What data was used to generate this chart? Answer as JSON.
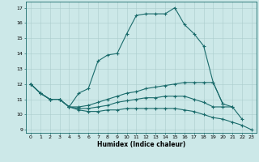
{
  "xlabel": "Humidex (Indice chaleur)",
  "background_color": "#cce8e8",
  "grid_color": "#aacccc",
  "line_color": "#1a6b6b",
  "xlim": [
    -0.5,
    23.5
  ],
  "ylim": [
    8.8,
    17.4
  ],
  "yticks": [
    9,
    10,
    11,
    12,
    13,
    14,
    15,
    16,
    17
  ],
  "xticks": [
    0,
    1,
    2,
    3,
    4,
    5,
    6,
    7,
    8,
    9,
    10,
    11,
    12,
    13,
    14,
    15,
    16,
    17,
    18,
    19,
    20,
    21,
    22,
    23
  ],
  "series": [
    {
      "x": [
        0,
        1,
        2,
        3,
        4,
        5,
        6,
        7,
        8,
        9,
        10,
        11,
        12,
        13,
        14,
        15,
        16,
        17,
        18,
        19,
        20,
        21,
        22,
        23
      ],
      "y": [
        12.0,
        11.4,
        11.0,
        11.0,
        10.5,
        11.4,
        11.7,
        13.5,
        13.9,
        14.0,
        15.3,
        16.5,
        16.6,
        16.6,
        16.6,
        17.0,
        15.9,
        15.3,
        14.5,
        12.1,
        10.7,
        null,
        null,
        null
      ]
    },
    {
      "x": [
        0,
        1,
        2,
        3,
        4,
        5,
        6,
        7,
        8,
        9,
        10,
        11,
        12,
        13,
        14,
        15,
        16,
        17,
        18,
        19,
        20,
        21,
        22,
        23
      ],
      "y": [
        12.0,
        11.4,
        11.0,
        11.0,
        10.5,
        10.5,
        10.6,
        10.8,
        11.0,
        11.2,
        11.4,
        11.5,
        11.7,
        11.8,
        11.9,
        12.0,
        12.1,
        12.1,
        12.1,
        12.1,
        10.7,
        10.5,
        null,
        null
      ]
    },
    {
      "x": [
        0,
        1,
        2,
        3,
        4,
        5,
        6,
        7,
        8,
        9,
        10,
        11,
        12,
        13,
        14,
        15,
        16,
        17,
        18,
        19,
        20,
        21,
        22,
        23
      ],
      "y": [
        12.0,
        11.4,
        11.0,
        11.0,
        10.5,
        10.4,
        10.4,
        10.5,
        10.6,
        10.8,
        10.9,
        11.0,
        11.1,
        11.1,
        11.2,
        11.2,
        11.2,
        11.0,
        10.8,
        10.5,
        10.5,
        10.5,
        9.7,
        null
      ]
    },
    {
      "x": [
        0,
        1,
        2,
        3,
        4,
        5,
        6,
        7,
        8,
        9,
        10,
        11,
        12,
        13,
        14,
        15,
        16,
        17,
        18,
        19,
        20,
        21,
        22,
        23
      ],
      "y": [
        12.0,
        11.4,
        11.0,
        11.0,
        10.5,
        10.3,
        10.2,
        10.2,
        10.3,
        10.3,
        10.4,
        10.4,
        10.4,
        10.4,
        10.4,
        10.4,
        10.3,
        10.2,
        10.0,
        9.8,
        9.7,
        9.5,
        9.3,
        9.0
      ]
    }
  ]
}
